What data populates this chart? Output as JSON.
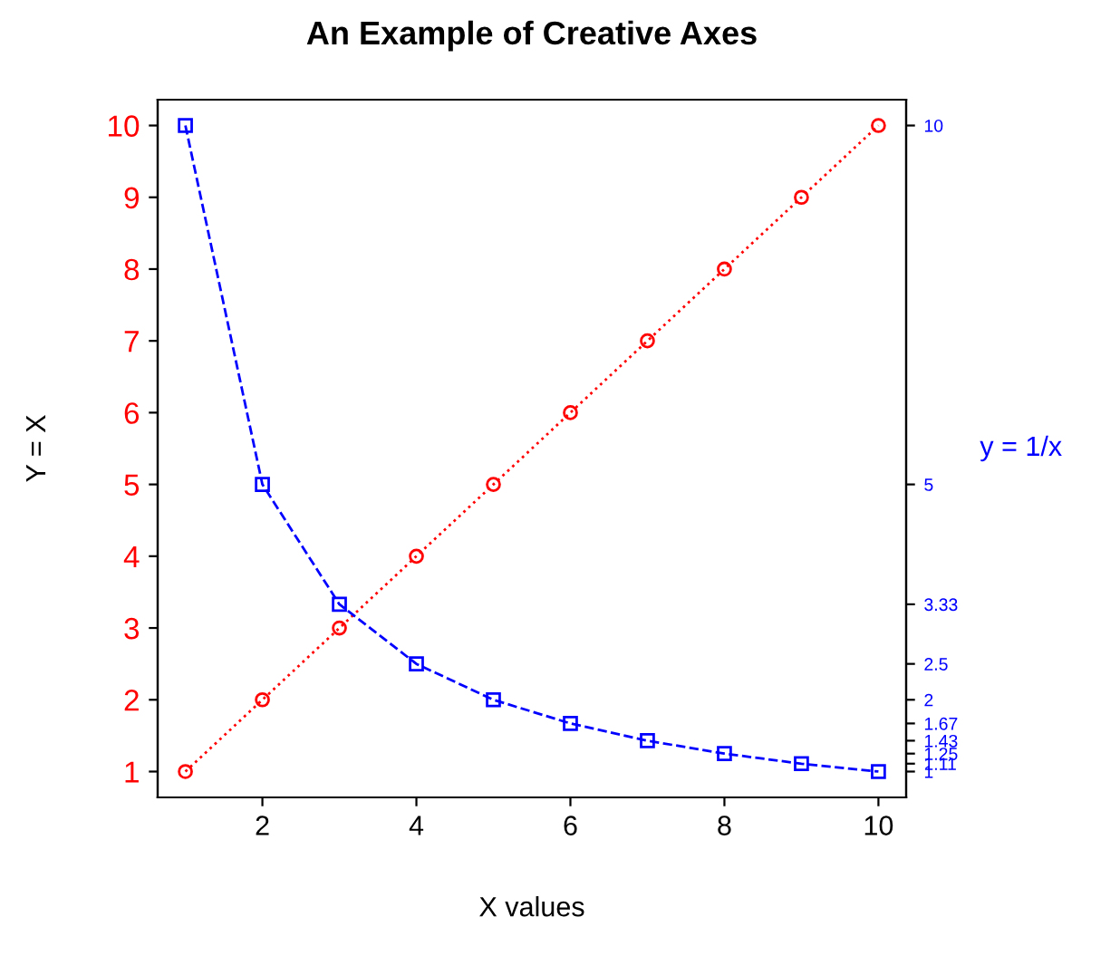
{
  "chart_data": {
    "type": "line",
    "title": "An Example of Creative Axes",
    "xlabel": "X values",
    "ylabel": "Y = X",
    "y2label": "y = 1/x",
    "x": [
      1,
      2,
      3,
      4,
      5,
      6,
      7,
      8,
      9,
      10
    ],
    "series": [
      {
        "color": "#ff0000",
        "values": [
          1,
          2,
          3,
          4,
          5,
          6,
          7,
          8,
          9,
          10
        ],
        "marker": "circle",
        "line_style": "dotted"
      },
      {
        "color": "#0000ff",
        "values": [
          10,
          5,
          3.33,
          2.5,
          2,
          1.67,
          1.43,
          1.25,
          1.11,
          1
        ],
        "marker": "square",
        "line_style": "dashed",
        "axis": "y2"
      }
    ],
    "xlim": [
      0.64,
      10.36
    ],
    "xticks": [
      2,
      4,
      6,
      8,
      10
    ],
    "ylim": [
      0.64,
      10.36
    ],
    "yticks": [
      1,
      2,
      3,
      4,
      5,
      6,
      7,
      8,
      9,
      10
    ],
    "y2lim": [
      0.64,
      10.36
    ],
    "y2ticks": [
      10,
      5,
      3.33,
      2.5,
      2,
      1.67,
      1.43,
      1.25,
      1.11,
      1
    ],
    "grid": false,
    "legend": false
  }
}
